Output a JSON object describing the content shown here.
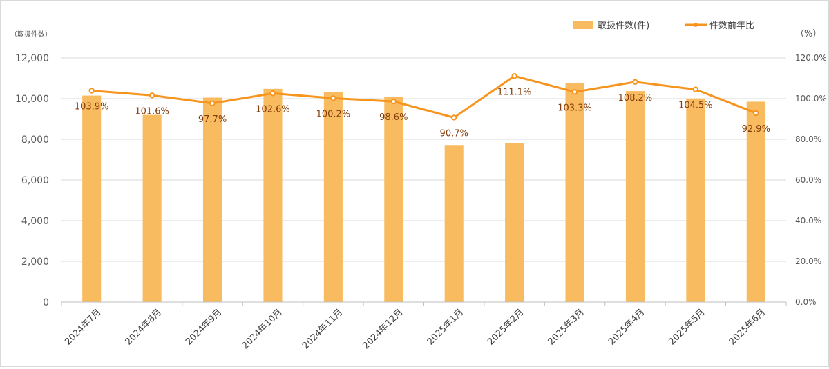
{
  "chart_data": {
    "type": "bar+line",
    "categories": [
      "2024年7月",
      "2024年8月",
      "2024年9月",
      "2024年10月",
      "2024年11月",
      "2024年12月",
      "2025年1月",
      "2025年2月",
      "2025年3月",
      "2025年4月",
      "2025年5月",
      "2025年6月"
    ],
    "series": [
      {
        "name": "取扱件数(件)",
        "type": "bar",
        "axis": "left",
        "color": "#f9bb5f",
        "values": [
          10150,
          9200,
          10050,
          10480,
          10330,
          10080,
          7720,
          7820,
          10780,
          10370,
          10010,
          9850
        ]
      },
      {
        "name": "件数前年比",
        "type": "line",
        "axis": "right",
        "color": "#f7941d",
        "values": [
          103.9,
          101.6,
          97.7,
          102.6,
          100.2,
          98.6,
          90.7,
          111.1,
          103.3,
          108.2,
          104.5,
          92.9
        ],
        "labels": [
          "103.9%",
          "101.6%",
          "97.7%",
          "102.6%",
          "100.2%",
          "98.6%",
          "90.7%",
          "111.1%",
          "103.3%",
          "108.2%",
          "104.5%",
          "92.9%"
        ]
      }
    ],
    "left_axis": {
      "unit_label": "（取扱件数）",
      "min": 0,
      "max": 12000,
      "ticks": [
        "0",
        "2,000",
        "4,000",
        "6,000",
        "8,000",
        "10,000",
        "12,000"
      ]
    },
    "right_axis": {
      "unit_label": "（%）",
      "min": 0,
      "max": 120,
      "ticks": [
        "0.0%",
        "20.0%",
        "40.0%",
        "60.0%",
        "80.0%",
        "100.0%",
        "120.0%"
      ]
    },
    "grid": true,
    "legend_position": "top-right"
  }
}
